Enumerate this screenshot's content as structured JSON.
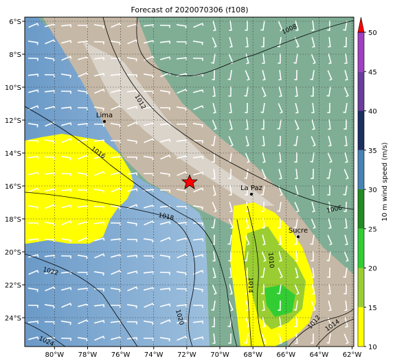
{
  "chart_data": {
    "type": "map",
    "title": "Forecast of 2020070306 (f108)",
    "xlim": [
      -81.8,
      -61.9
    ],
    "ylim": [
      -25.75,
      -5.75
    ],
    "xticks": [
      {
        "value": -80,
        "label": "80°W"
      },
      {
        "value": -78,
        "label": "78°W"
      },
      {
        "value": -76,
        "label": "76°W"
      },
      {
        "value": -74,
        "label": "74°W"
      },
      {
        "value": -72,
        "label": "72°W"
      },
      {
        "value": -70,
        "label": "70°W"
      },
      {
        "value": -68,
        "label": "68°W"
      },
      {
        "value": -66,
        "label": "66°W"
      },
      {
        "value": -64,
        "label": "64°W"
      },
      {
        "value": -62,
        "label": "62°W"
      }
    ],
    "yticks": [
      {
        "value": -6,
        "label": "6°S"
      },
      {
        "value": -8,
        "label": "8°S"
      },
      {
        "value": -10,
        "label": "10°S"
      },
      {
        "value": -12,
        "label": "12°S"
      },
      {
        "value": -14,
        "label": "14°S"
      },
      {
        "value": -16,
        "label": "16°S"
      },
      {
        "value": -18,
        "label": "18°S"
      },
      {
        "value": -20,
        "label": "20°S"
      },
      {
        "value": -22,
        "label": "22°S"
      },
      {
        "value": -24,
        "label": "24°S"
      }
    ],
    "grid": true,
    "cities": [
      "Lima",
      "La Paz",
      "Sucre"
    ],
    "contour_labels": [
      1008,
      1012,
      1016,
      1018,
      1006,
      1010,
      1014,
      1022,
      1020,
      1024,
      1012,
      1014
    ],
    "colorbar": {
      "label": "10 m wind speed (m/s)",
      "lim": [
        10,
        50
      ],
      "ticks": [
        10,
        15,
        20,
        25,
        30,
        35,
        40,
        45,
        50
      ],
      "colors": [
        "#ffff00",
        "#9acd32",
        "#32cd32",
        "#228b22",
        "#4682b4",
        "#1c2f5e",
        "#6a3d9a",
        "#a040c0"
      ],
      "extend_color": "#ff0000"
    }
  }
}
